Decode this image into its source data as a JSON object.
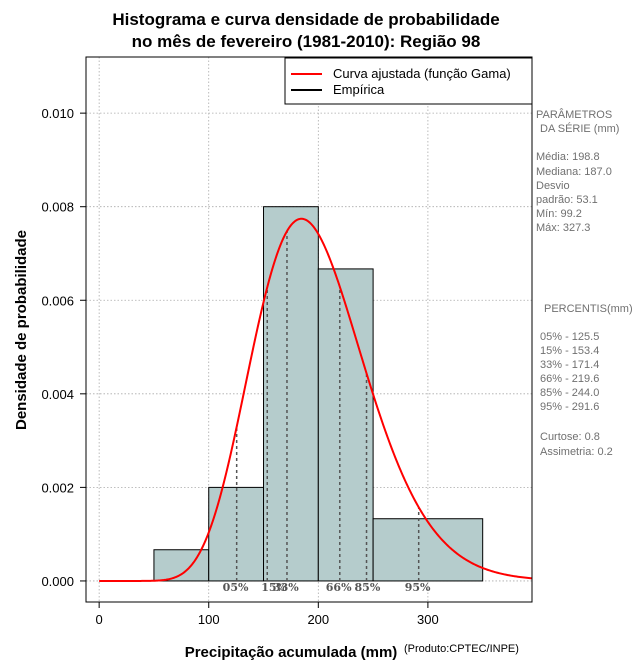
{
  "chart_data": {
    "type": "bar",
    "title_line1": "Histograma e curva densidade de probabilidade",
    "title_line2": "no mês de fevereiro (1981-2010): Região 98",
    "xlabel": "Precipitação acumulada (mm)",
    "ylabel": "Densidade de probabilidade",
    "credit": "(Produto:CPTEC/INPE)",
    "xlim": [
      -12,
      395
    ],
    "ylim": [
      -0.00045,
      0.0112
    ],
    "x_ticks": [
      0,
      100,
      200,
      300
    ],
    "x_tick_labels": [
      "0",
      "100",
      "200",
      "300"
    ],
    "y_ticks": [
      0.0,
      0.002,
      0.004,
      0.006,
      0.008,
      0.01
    ],
    "y_tick_labels": [
      "0.000",
      "0.002",
      "0.004",
      "0.006",
      "0.008",
      "0.010"
    ],
    "grid": true,
    "bin_edges": [
      50,
      100,
      150,
      200,
      250,
      350
    ],
    "bins": [
      {
        "from": 50,
        "to": 100,
        "density": 0.000667
      },
      {
        "from": 100,
        "to": 150,
        "density": 0.002
      },
      {
        "from": 150,
        "to": 200,
        "density": 0.008
      },
      {
        "from": 200,
        "to": 250,
        "density": 0.00667
      },
      {
        "from": 250,
        "to": 350,
        "density": 0.00133
      }
    ],
    "gamma_fit": {
      "shape": 14.0,
      "scale": 14.2,
      "x_range": [
        0,
        395
      ]
    },
    "percentile_markers": [
      {
        "label": "05%",
        "value": 125.5
      },
      {
        "label": "15%",
        "value": 153.4
      },
      {
        "label": "33%",
        "value": 171.4
      },
      {
        "label": "66%",
        "value": 219.6
      },
      {
        "label": "85%",
        "value": 244.0
      },
      {
        "label": "95%",
        "value": 291.6
      }
    ],
    "legend": {
      "position": "top-right",
      "entries": [
        {
          "label": "Curva ajustada (função Gama)",
          "color": "#ff0000"
        },
        {
          "label": "Empírica",
          "color": "#000000"
        }
      ]
    },
    "colors": {
      "bar_fill": "#b5cccc",
      "curve": "#ff0000",
      "grid": "#aaaaaa",
      "percentile_line": "#555555"
    }
  },
  "side_panel": {
    "params_title": [
      "PARÂMETROS",
      "DA SÉRIE (mm)"
    ],
    "params": [
      "Média:  198.8",
      "Mediana:  187.0",
      "Desvio",
      "padrão:  53.1",
      "Mín:  99.2",
      "Máx:  327.3"
    ],
    "percentis_title": "PERCENTIS(mm)",
    "percentis": [
      "05% -  125.5",
      "15% -  153.4",
      "33% -  171.4",
      "66% -  219.6",
      "85% -  244.0",
      "95% -  291.6"
    ],
    "extra": [
      "Curtose:  0.8",
      "Assimetria:  0.2"
    ]
  }
}
